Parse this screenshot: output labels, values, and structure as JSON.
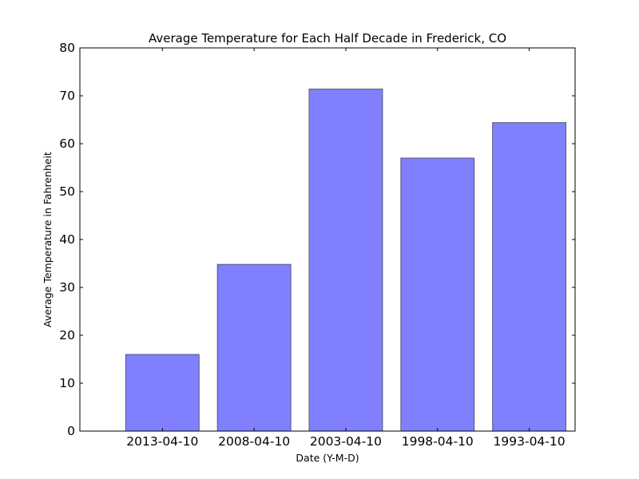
{
  "chart_data": {
    "type": "bar",
    "title": "Average Temperature for Each Half Decade in Frederick, CO",
    "xlabel": "Date (Y-M-D)",
    "ylabel": "Average Temperature in Fahrenheit",
    "categories": [
      "2013-04-10",
      "2008-04-10",
      "2003-04-10",
      "1998-04-10",
      "1993-04-10"
    ],
    "values": [
      16.0,
      34.8,
      71.4,
      57.0,
      64.4
    ],
    "ylim": [
      0,
      80
    ],
    "yticks": [
      0,
      10,
      20,
      30,
      40,
      50,
      60,
      70,
      80
    ],
    "grid": false,
    "bar_color": "#8080ff",
    "bar_edge_color": "#55557a"
  }
}
